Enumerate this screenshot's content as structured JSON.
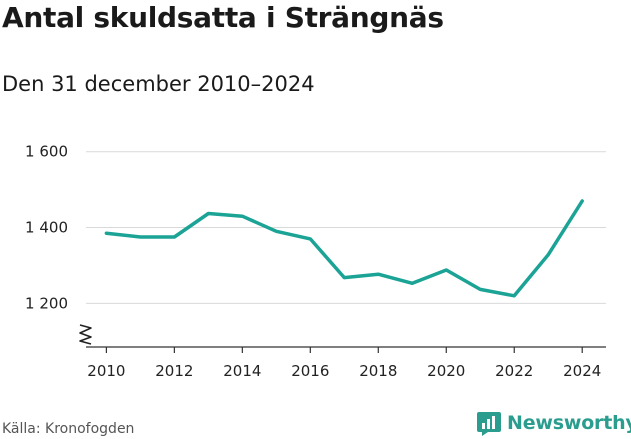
{
  "header": {
    "title": "Antal skuldsatta i Strängnäs",
    "subtitle": "Den 31 december 2010–2024"
  },
  "footer": {
    "source": "Källa: Kronofogden",
    "brand": "Newsworthy"
  },
  "colors": {
    "line": "#1ba396",
    "grid": "#d9d9d9",
    "axis": "#333333",
    "brand": "#2a9d8f"
  },
  "chart_data": {
    "type": "line",
    "title": "Antal skuldsatta i Strängnäs",
    "subtitle": "Den 31 december 2010–2024",
    "xlabel": "",
    "ylabel": "",
    "x": [
      2010,
      2011,
      2012,
      2013,
      2014,
      2015,
      2016,
      2017,
      2018,
      2019,
      2020,
      2021,
      2022,
      2023,
      2024
    ],
    "series": [
      {
        "values": [
          1385,
          1375,
          1375,
          1437,
          1430,
          1390,
          1370,
          1268,
          1277,
          1253,
          1288,
          1237,
          1220,
          1328,
          1470
        ]
      }
    ],
    "x_ticks": [
      2010,
      2012,
      2014,
      2016,
      2018,
      2020,
      2022,
      2024
    ],
    "x_tick_labels": [
      "2010",
      "2012",
      "2014",
      "2016",
      "2018",
      "2020",
      "2022",
      "2024"
    ],
    "y_ticks": [
      1200,
      1400,
      1600
    ],
    "y_tick_labels": [
      "1 200",
      "1 400",
      "1 600"
    ],
    "ylim": [
      1085,
      1615
    ],
    "xlim": [
      2009.4,
      2024.7
    ],
    "y_axis_break": true,
    "grid": "horizontal"
  }
}
